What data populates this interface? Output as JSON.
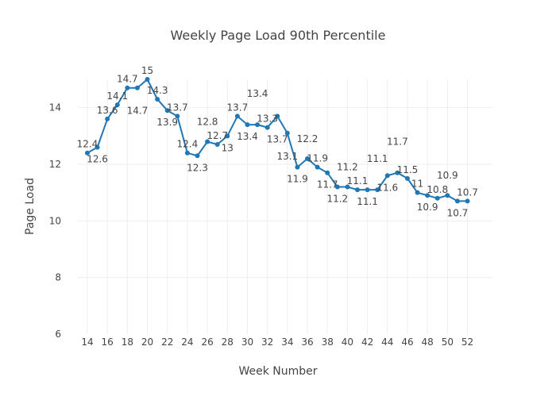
{
  "chart_data": {
    "type": "line",
    "title": "Weekly Page Load 90th Percentile",
    "xlabel": "Week Number",
    "ylabel": "Page Load",
    "x": [
      14,
      15,
      16,
      17,
      18,
      19,
      20,
      21,
      22,
      23,
      24,
      25,
      26,
      27,
      28,
      29,
      30,
      31,
      32,
      33,
      34,
      35,
      36,
      37,
      38,
      39,
      40,
      41,
      42,
      43,
      44,
      45,
      46,
      47,
      48,
      49,
      50,
      51,
      52
    ],
    "y": [
      12.4,
      12.6,
      13.6,
      14.1,
      14.7,
      14.7,
      15,
      14.3,
      13.9,
      13.7,
      12.4,
      12.3,
      12.8,
      12.7,
      13,
      13.7,
      13.4,
      13.4,
      13.3,
      13.7,
      13.1,
      11.9,
      12.2,
      11.9,
      11.7,
      11.2,
      11.2,
      11.1,
      11.1,
      11.1,
      11.6,
      11.7,
      11.5,
      11,
      10.9,
      10.8,
      10.9,
      10.7,
      10.7
    ],
    "xticks": [
      14,
      16,
      18,
      20,
      22,
      24,
      26,
      28,
      30,
      32,
      34,
      36,
      38,
      40,
      42,
      44,
      46,
      48,
      50,
      52
    ],
    "yticks": [
      6,
      8,
      10,
      12,
      14
    ],
    "xlim": [
      13.05,
      54.5
    ],
    "ylim": [
      6,
      15
    ],
    "grid": true,
    "line_color": "#1f77b4",
    "show_data_labels": true
  }
}
